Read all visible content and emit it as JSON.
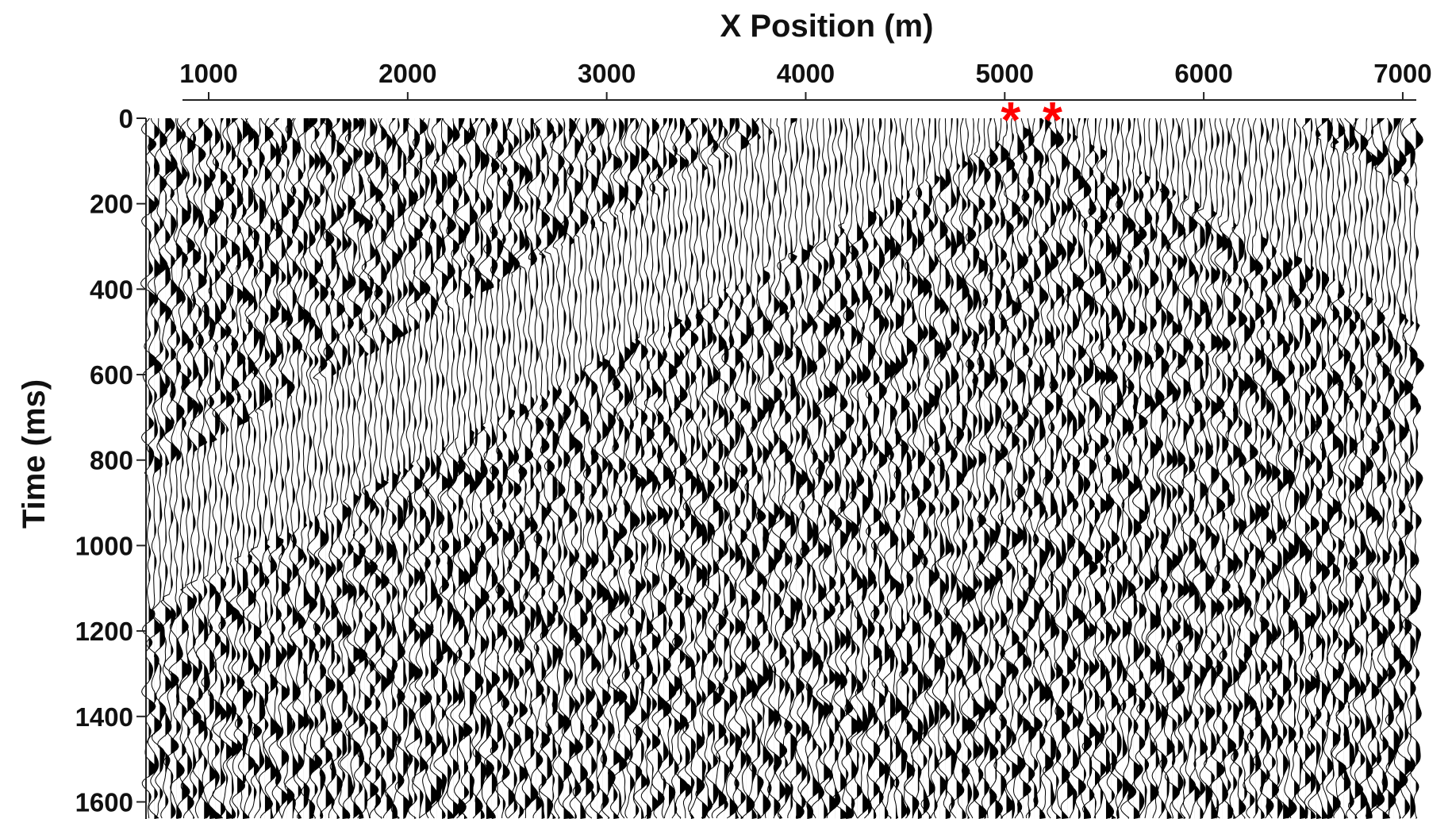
{
  "chart_data": {
    "type": "wiggle",
    "xlabel": "X Position (m)",
    "ylabel": "Time (ms)",
    "xlim": [
      685,
      7080
    ],
    "xticks": [
      1000,
      2000,
      3000,
      4000,
      5000,
      6000,
      7000
    ],
    "ylim": [
      0,
      1640
    ],
    "yticks": [
      0,
      200,
      400,
      600,
      800,
      1000,
      1200,
      1400,
      1600
    ],
    "y_inverted": true,
    "markers": {
      "symbol": "*",
      "color": "#ff0000",
      "x": [
        5030,
        5240
      ],
      "y": [
        0,
        0
      ]
    }
  }
}
